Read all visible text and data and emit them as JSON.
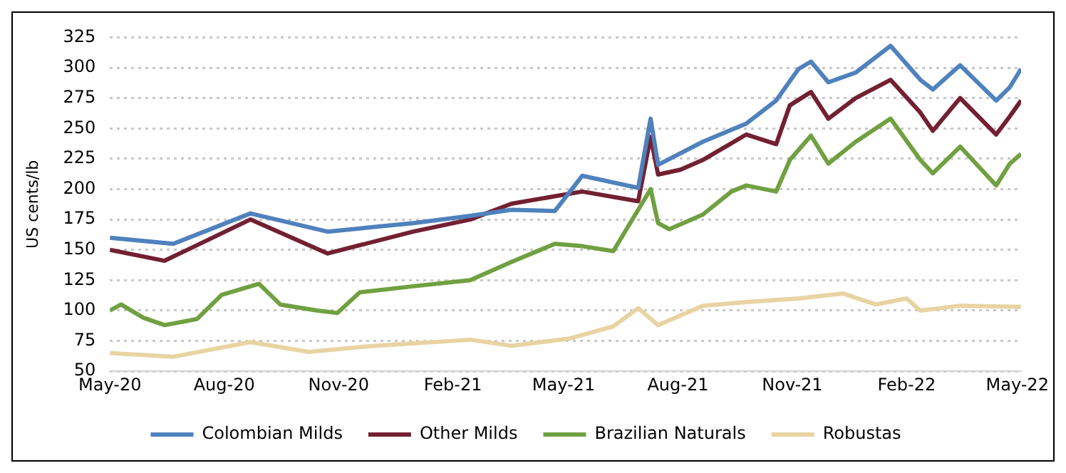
{
  "chart_data": {
    "type": "line",
    "ylabel": "US cents/lb",
    "xlim": [
      "2020-05-01",
      "2022-05-04"
    ],
    "xticks": [
      {
        "value": "2020-05-01",
        "label": "May-20"
      },
      {
        "value": "2020-08-01",
        "label": "Aug-20"
      },
      {
        "value": "2020-11-01",
        "label": "Nov-20"
      },
      {
        "value": "2021-02-01",
        "label": "Feb-21"
      },
      {
        "value": "2021-05-01",
        "label": "May-21"
      },
      {
        "value": "2021-08-01",
        "label": "Aug-21"
      },
      {
        "value": "2021-11-01",
        "label": "Nov-21"
      },
      {
        "value": "2022-02-01",
        "label": "Feb-22"
      },
      {
        "value": "2022-05-01",
        "label": "May-22"
      }
    ],
    "ylim": [
      50,
      325
    ],
    "yticks": [
      50,
      75,
      100,
      125,
      150,
      175,
      200,
      225,
      250,
      275,
      300,
      325
    ],
    "grid": "y",
    "legend": "bottom",
    "marker": "none",
    "line_style": "solid",
    "series": [
      {
        "name": "Colombian Milds",
        "color": "#4f81bd",
        "x": [
          "2020-05-01",
          "2020-06-21",
          "2020-08-22",
          "2020-10-23",
          "2020-12-31",
          "2021-02-15",
          "2021-03-20",
          "2021-04-24",
          "2021-05-16",
          "2021-06-30",
          "2021-07-10",
          "2021-07-16",
          "2021-08-21",
          "2021-09-25",
          "2021-10-19",
          "2021-11-06",
          "2021-11-16",
          "2021-11-30",
          "2021-12-22",
          "2022-01-19",
          "2022-02-12",
          "2022-02-22",
          "2022-03-16",
          "2022-04-14",
          "2022-04-25",
          "2022-05-04"
        ],
        "values": [
          160,
          155,
          180,
          165,
          172,
          178,
          183,
          182,
          211,
          201,
          258,
          220,
          239,
          254,
          273,
          299,
          305,
          288,
          296,
          318,
          290,
          282,
          302,
          273,
          284,
          299
        ]
      },
      {
        "name": "Other Milds",
        "color": "#722032",
        "x": [
          "2020-05-01",
          "2020-06-14",
          "2020-08-22",
          "2020-10-23",
          "2020-12-31",
          "2021-02-15",
          "2021-03-20",
          "2021-05-16",
          "2021-06-30",
          "2021-07-10",
          "2021-07-16",
          "2021-08-03",
          "2021-08-21",
          "2021-09-25",
          "2021-10-19",
          "2021-10-30",
          "2021-11-16",
          "2021-11-30",
          "2021-12-22",
          "2022-01-19",
          "2022-02-12",
          "2022-02-22",
          "2022-03-16",
          "2022-04-14",
          "2022-04-25",
          "2022-05-04"
        ],
        "values": [
          150,
          141,
          175,
          147,
          165,
          175,
          188,
          198,
          190,
          243,
          212,
          216,
          224,
          245,
          237,
          269,
          280,
          258,
          275,
          290,
          263,
          248,
          275,
          245,
          260,
          273
        ]
      },
      {
        "name": "Brazilian Naturals",
        "color": "#70a041",
        "x": [
          "2020-05-01",
          "2020-05-10",
          "2020-05-28",
          "2020-06-14",
          "2020-07-10",
          "2020-07-30",
          "2020-08-29",
          "2020-09-15",
          "2020-10-15",
          "2020-10-31",
          "2020-11-18",
          "2020-12-31",
          "2021-02-15",
          "2021-03-20",
          "2021-04-24",
          "2021-05-16",
          "2021-06-10",
          "2021-07-10",
          "2021-07-16",
          "2021-07-25",
          "2021-08-21",
          "2021-09-13",
          "2021-09-25",
          "2021-10-19",
          "2021-10-30",
          "2021-11-16",
          "2021-11-30",
          "2021-12-22",
          "2022-01-19",
          "2022-02-12",
          "2022-02-22",
          "2022-03-16",
          "2022-04-14",
          "2022-04-25",
          "2022-05-04"
        ],
        "values": [
          100,
          105,
          94,
          88,
          93,
          113,
          122,
          105,
          100,
          98,
          115,
          120,
          125,
          140,
          155,
          153,
          149,
          200,
          172,
          167,
          179,
          198,
          203,
          198,
          224,
          244,
          221,
          239,
          258,
          224,
          213,
          235,
          203,
          221,
          229
        ]
      },
      {
        "name": "Robustas",
        "color": "#e8d4a2",
        "x": [
          "2020-05-01",
          "2020-06-21",
          "2020-08-22",
          "2020-10-08",
          "2020-11-30",
          "2021-02-15",
          "2021-03-20",
          "2021-05-06",
          "2021-06-10",
          "2021-06-30",
          "2021-07-16",
          "2021-08-21",
          "2021-09-25",
          "2021-11-06",
          "2021-12-12",
          "2022-01-07",
          "2022-02-01",
          "2022-02-12",
          "2022-03-16",
          "2022-05-04"
        ],
        "values": [
          65,
          62,
          74,
          66,
          71,
          76,
          71,
          77,
          87,
          102,
          88,
          104,
          107,
          110,
          114,
          105,
          110,
          100,
          104,
          103
        ]
      }
    ]
  }
}
